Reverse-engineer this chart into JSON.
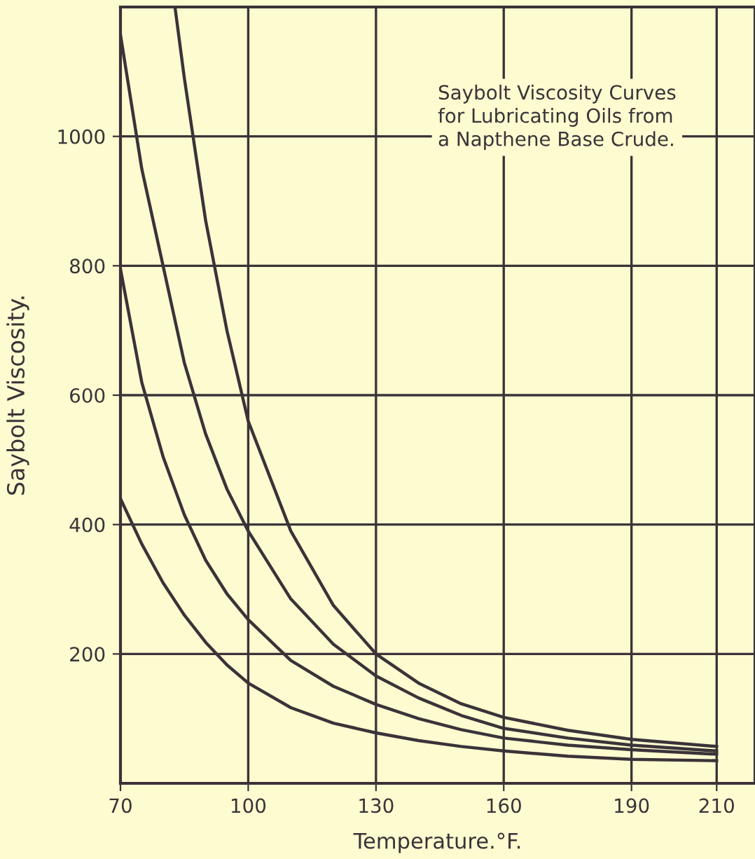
{
  "chart_data": {
    "type": "line",
    "title": "Saybolt Viscosity Curves\nfor Lubricating Oils from\na Napthene Base Crude.",
    "xlabel": "Temperature.°F.",
    "ylabel": "Saybolt Viscosity.",
    "series": [
      {
        "color": "#3b3338",
        "x": [
          70,
          75,
          80,
          85,
          90,
          95,
          100,
          110,
          120,
          130,
          140,
          150,
          160,
          175,
          190,
          210
        ],
        "values": [
          440,
          370,
          310,
          260,
          218,
          183,
          155,
          117,
          93,
          78,
          66,
          57,
          50,
          42,
          37,
          35
        ]
      },
      {
        "color": "#3b3338",
        "x": [
          70,
          75,
          80,
          85,
          90,
          95,
          100,
          110,
          120,
          130,
          140,
          150,
          160,
          175,
          190,
          210
        ],
        "values": [
          795,
          620,
          505,
          415,
          345,
          293,
          253,
          190,
          150,
          122,
          100,
          83,
          70,
          59,
          52,
          45
        ]
      },
      {
        "color": "#3b3338",
        "x": [
          70,
          75,
          80,
          85,
          90,
          95,
          100,
          110,
          120,
          130,
          140,
          150,
          160,
          175,
          190,
          210
        ],
        "values": [
          1157,
          950,
          800,
          650,
          540,
          455,
          390,
          285,
          215,
          166,
          132,
          105,
          85,
          70,
          59,
          50
        ]
      },
      {
        "color": "#3b3338",
        "x": [
          82.8,
          85,
          90,
          95,
          100,
          110,
          120,
          130,
          140,
          150,
          160,
          175,
          190,
          210
        ],
        "values": [
          1200,
          1090,
          870,
          700,
          560,
          390,
          275,
          200,
          155,
          123,
          102,
          82,
          68,
          57
        ]
      }
    ],
    "xlim": [
      70,
      219
    ],
    "ylim": [
      0,
      1200
    ],
    "xticks": [
      70,
      100,
      130,
      160,
      190,
      210
    ],
    "yticks": [
      200,
      400,
      600,
      800,
      1000
    ],
    "grid": true,
    "marker": "none",
    "line_style": "solid"
  }
}
